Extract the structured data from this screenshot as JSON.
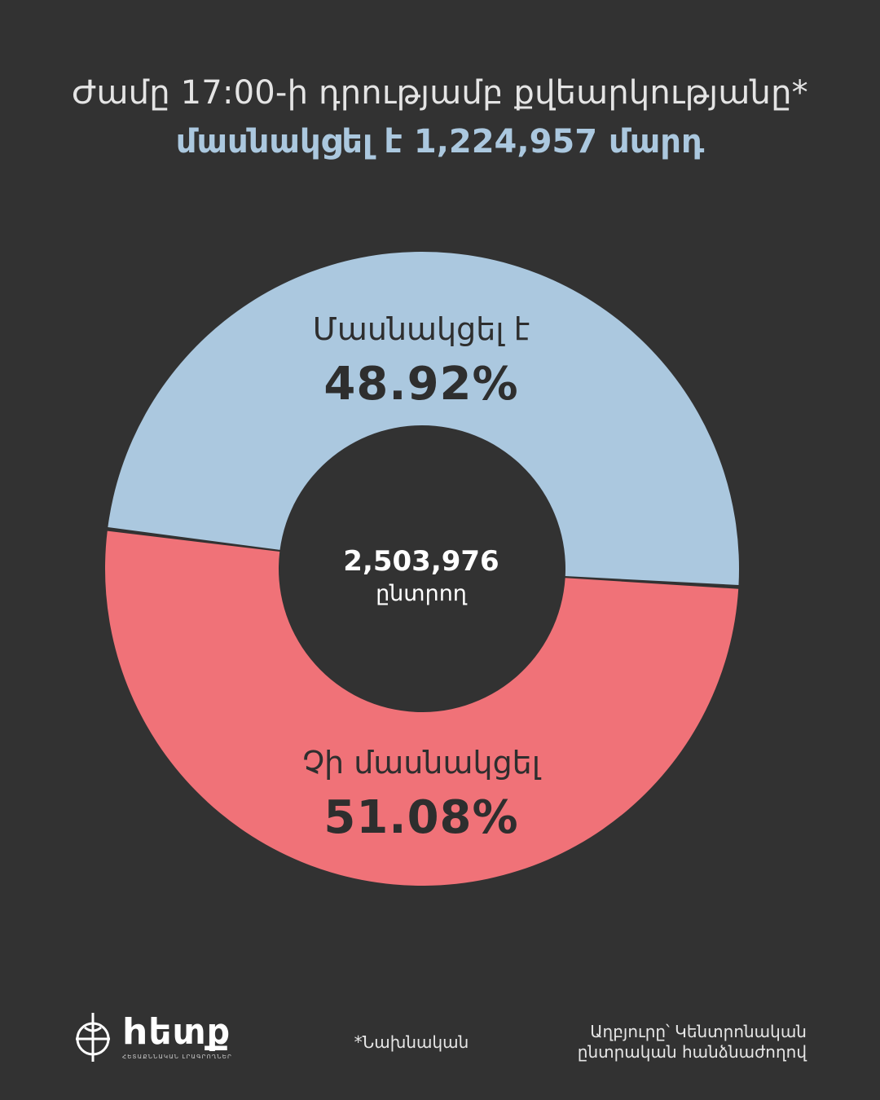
{
  "header": {
    "title_line1": "Ժամը 17:00-ի դրությամբ քվեարկությանը*",
    "title_line2": "մասնակցել է 1,224,957 մարդ"
  },
  "chart_data": {
    "type": "pie",
    "title": "Ժամը 17:00-ի դրությամբ քվեարկությանը* մասնակցել է 1,224,957 մարդ",
    "slices": [
      {
        "label": "Մասնակցել է",
        "value": 48.92,
        "display": "48.92%",
        "color": "#abc8df"
      },
      {
        "label": "Չի մասնակցել",
        "value": 51.08,
        "display": "51.08%",
        "color": "#f07278"
      }
    ],
    "center": {
      "value": "2,503,976",
      "unit": "ընտրող"
    },
    "donut": true
  },
  "logo": {
    "name": "hետք",
    "subtitle": "ՀԵՏԱՔՆՆԱԿԱՆ ԼՐԱԳՐՈՂՆԵՐ"
  },
  "footer": {
    "note": "*Նախնական",
    "source_line1": "Աղբյուրը՝ Կենտրոնական",
    "source_line2": "ընտրական հանձնաժողով"
  },
  "colors": {
    "background": "#323232",
    "accent": "#abc8df",
    "negative": "#f07278"
  }
}
